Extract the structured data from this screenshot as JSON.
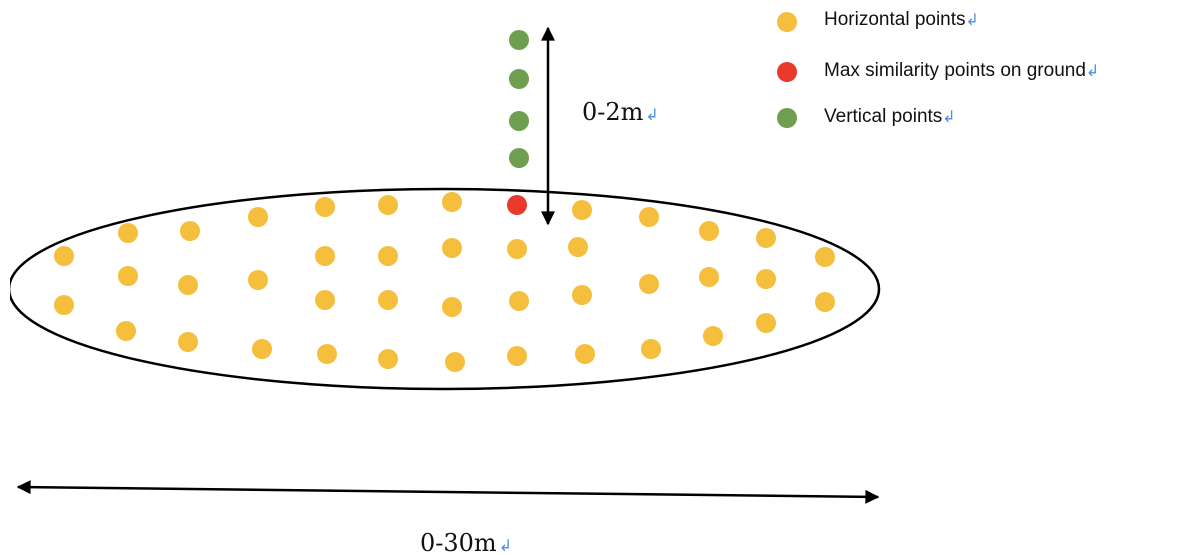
{
  "colors": {
    "horizontal": "#F5BE3C",
    "max_ground": "#E8392A",
    "vertical": "#6E9E4F",
    "outline": "#000000",
    "para_mark": "#4A90E2"
  },
  "paragraph_mark": "↲",
  "legend": {
    "items": [
      {
        "key": "horizontal",
        "label": "Horizontal points"
      },
      {
        "key": "max_ground",
        "label": "Max similarity points on ground"
      },
      {
        "key": "vertical",
        "label": "Vertical points"
      }
    ]
  },
  "dimensions": {
    "vertical_label": "0-2m",
    "horizontal_label": "0-30m"
  }
}
